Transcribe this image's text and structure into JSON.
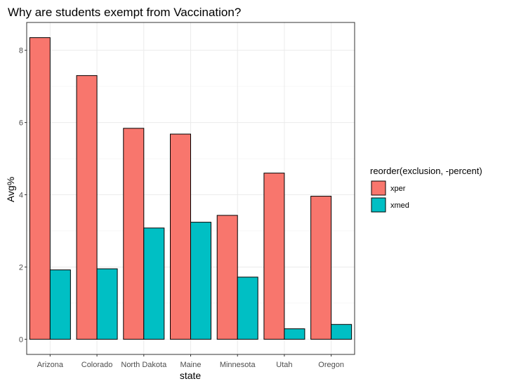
{
  "chart_data": {
    "type": "bar",
    "title": "Why are students exempt from Vaccination?",
    "xlabel": "state",
    "ylabel": "Avg%",
    "categories": [
      "Arizona",
      "Colorado",
      "North Dakota",
      "Maine",
      "Minnesota",
      "Utah",
      "Oregon"
    ],
    "series": [
      {
        "name": "xper",
        "color": "#F8766D",
        "values": [
          8.35,
          7.3,
          5.84,
          5.68,
          3.43,
          4.6,
          3.96
        ]
      },
      {
        "name": "xmed",
        "color": "#00BFC4",
        "values": [
          1.92,
          1.95,
          3.08,
          3.24,
          1.72,
          0.29,
          0.41
        ]
      }
    ],
    "ylim": [
      -0.42,
      8.77
    ],
    "yticks": [
      0,
      2,
      4,
      6,
      8
    ],
    "grid": true,
    "legend": {
      "title": "reorder(exclusion, -percent)",
      "placement": "right"
    }
  }
}
